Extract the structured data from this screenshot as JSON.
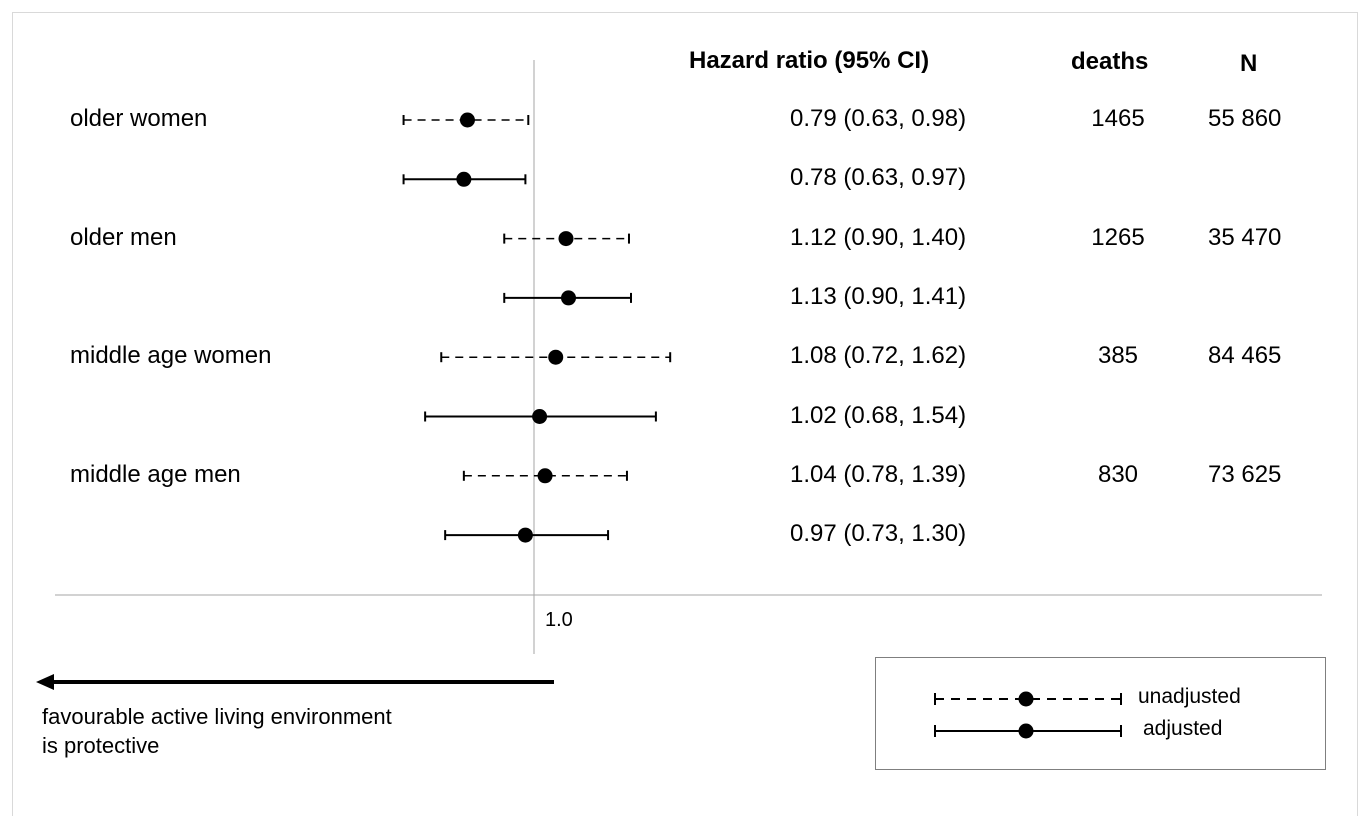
{
  "chart_data": {
    "type": "forest",
    "reference_tick": "1.0",
    "columns": {
      "hr": "Hazard ratio (95% CI)",
      "deaths": "deaths",
      "n": "N"
    },
    "rows": [
      {
        "group": "older women",
        "model": "unadjusted",
        "hr": 0.79,
        "lo": 0.63,
        "hi": 0.98,
        "hr_text": "0.79 (0.63, 0.98)",
        "deaths": "1465",
        "n": "55 860"
      },
      {
        "group": "",
        "model": "adjusted",
        "hr": 0.78,
        "lo": 0.63,
        "hi": 0.97,
        "hr_text": "0.78 (0.63, 0.97)",
        "deaths": "",
        "n": ""
      },
      {
        "group": "older men",
        "model": "unadjusted",
        "hr": 1.12,
        "lo": 0.9,
        "hi": 1.4,
        "hr_text": "1.12 (0.90, 1.40)",
        "deaths": "1265",
        "n": "35 470"
      },
      {
        "group": "",
        "model": "adjusted",
        "hr": 1.13,
        "lo": 0.9,
        "hi": 1.41,
        "hr_text": "1.13 (0.90, 1.41)",
        "deaths": "",
        "n": ""
      },
      {
        "group": "middle age women",
        "model": "unadjusted",
        "hr": 1.08,
        "lo": 0.72,
        "hi": 1.62,
        "hr_text": "1.08 (0.72, 1.62)",
        "deaths": "385",
        "n": "84 465"
      },
      {
        "group": "",
        "model": "adjusted",
        "hr": 1.02,
        "lo": 0.68,
        "hi": 1.54,
        "hr_text": "1.02 (0.68, 1.54)",
        "deaths": "",
        "n": ""
      },
      {
        "group": "middle age men",
        "model": "unadjusted",
        "hr": 1.04,
        "lo": 0.78,
        "hi": 1.39,
        "hr_text": "1.04 (0.78, 1.39)",
        "deaths": "830",
        "n": "73 625"
      },
      {
        "group": "",
        "model": "adjusted",
        "hr": 0.97,
        "lo": 0.73,
        "hi": 1.3,
        "hr_text": "0.97 (0.73, 1.30)",
        "deaths": "",
        "n": ""
      }
    ],
    "legend": {
      "unadjusted": "unadjusted",
      "adjusted": "adjusted"
    },
    "direction_note": {
      "line1": "favourable active living environment",
      "line2": "is protective"
    }
  }
}
